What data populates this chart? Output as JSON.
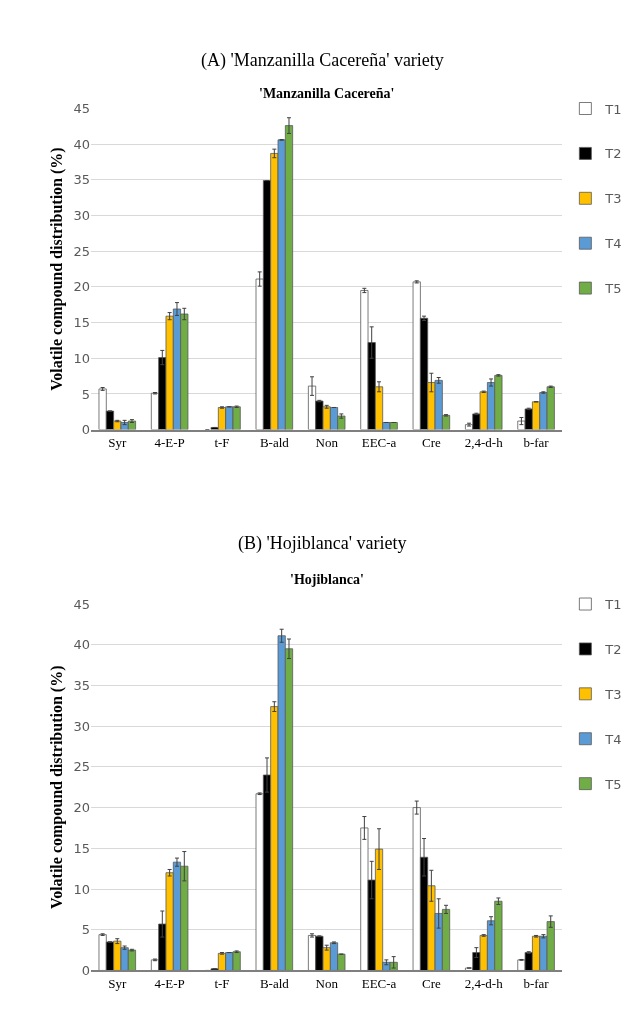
{
  "chart_data": [
    {
      "type": "bar",
      "title": "(A) 'Manzanilla Cacereña' variety",
      "subtitle": "'Manzanilla Cacereña'",
      "ylabel": "Volatile compound distribution (%)",
      "categories": [
        "Syr",
        "4-E-P",
        "t-F",
        "B-ald",
        "Non",
        "EEC-a",
        "Cre",
        "2,4-d-h",
        "b-far"
      ],
      "ylim": [
        0,
        45
      ],
      "yticks": [
        0,
        5,
        10,
        15,
        20,
        25,
        30,
        35,
        40,
        45
      ],
      "grid": "y",
      "legend": "top right",
      "series": [
        {
          "name": "T1",
          "color": "#ffffff",
          "values": [
            5.7,
            5.1,
            0,
            21.1,
            6.1,
            19.5,
            20.7,
            0.7,
            1.2
          ],
          "errors": [
            0.2,
            0.1,
            null,
            1.0,
            1.3,
            0.3,
            0.15,
            0.2,
            0.5
          ]
        },
        {
          "name": "T2",
          "color": "#000000",
          "values": [
            2.6,
            10.1,
            0.3,
            34.9,
            4.0,
            12.2,
            15.6,
            2.2,
            2.9
          ],
          "errors": [
            0,
            1.0,
            0,
            0,
            0.1,
            2.2,
            0.3,
            0.1,
            0.1
          ]
        },
        {
          "name": "T3",
          "color": "#ffc000",
          "values": [
            1.2,
            15.9,
            3.1,
            38.7,
            3.2,
            6.0,
            6.6,
            5.3,
            3.9
          ],
          "errors": [
            0.1,
            0.5,
            0.1,
            0.6,
            0.2,
            0.7,
            1.3,
            0.1,
            0
          ]
        },
        {
          "name": "T4",
          "color": "#5b9bd5",
          "values": [
            1.0,
            16.9,
            3.2,
            40.6,
            3.1,
            1.0,
            6.9,
            6.6,
            5.2
          ],
          "errors": [
            0.3,
            0.9,
            0,
            0.05,
            0,
            0,
            0.4,
            0.5,
            0.1
          ]
        },
        {
          "name": "T5",
          "color": "#70ad47",
          "values": [
            1.2,
            16.2,
            3.2,
            42.6,
            1.9,
            1.0,
            2.0,
            7.6,
            6.0
          ],
          "errors": [
            0.2,
            0.8,
            0.1,
            1.1,
            0.3,
            0,
            0.1,
            0.1,
            0.1
          ]
        }
      ]
    },
    {
      "type": "bar",
      "title": "(B) 'Hojiblanca' variety",
      "subtitle": "'Hojiblanca'",
      "ylabel": "Volatile compound distribution (%)",
      "categories": [
        "Syr",
        "4-E-P",
        "t-F",
        "B-ald",
        "Non",
        "EEC-a",
        "Cre",
        "2,4-d-h",
        "b-far"
      ],
      "ylim": [
        0,
        45
      ],
      "yticks": [
        0,
        5,
        10,
        15,
        20,
        25,
        30,
        35,
        40,
        45
      ],
      "grid": "y",
      "legend": "top right",
      "series": [
        {
          "name": "T1",
          "color": "#ffffff",
          "values": [
            4.4,
            1.3,
            0,
            21.7,
            4.3,
            17.5,
            20.0,
            0.3,
            1.3
          ],
          "errors": [
            0.1,
            0.1,
            null,
            0.1,
            0.2,
            1.4,
            0.8,
            0,
            0.05
          ]
        },
        {
          "name": "T2",
          "color": "#000000",
          "values": [
            3.5,
            5.7,
            0.2,
            24.0,
            4.2,
            11.1,
            13.9,
            2.2,
            2.2
          ],
          "errors": [
            0,
            1.6,
            null,
            2.1,
            0.05,
            2.3,
            2.3,
            0.6,
            0.1
          ]
        },
        {
          "name": "T3",
          "color": "#ffc000",
          "values": [
            3.6,
            12.0,
            2.1,
            32.4,
            2.8,
            14.9,
            10.4,
            4.3,
            4.2
          ],
          "errors": [
            0.3,
            0.4,
            0.1,
            0.6,
            0.3,
            2.5,
            1.9,
            0.1,
            0.1
          ]
        },
        {
          "name": "T4",
          "color": "#5b9bd5",
          "values": [
            2.8,
            13.3,
            2.2,
            41.1,
            3.4,
            1.0,
            7.0,
            6.1,
            4.2
          ],
          "errors": [
            0.2,
            0.5,
            0,
            0.8,
            0.1,
            0.3,
            1.8,
            0.5,
            0.2
          ]
        },
        {
          "name": "T5",
          "color": "#70ad47",
          "values": [
            2.5,
            12.8,
            2.3,
            39.5,
            2.0,
            1.0,
            7.5,
            8.5,
            6.0
          ],
          "errors": [
            0.1,
            1.8,
            0.1,
            1.2,
            0,
            0.7,
            0.5,
            0.4,
            0.7
          ]
        }
      ]
    }
  ]
}
